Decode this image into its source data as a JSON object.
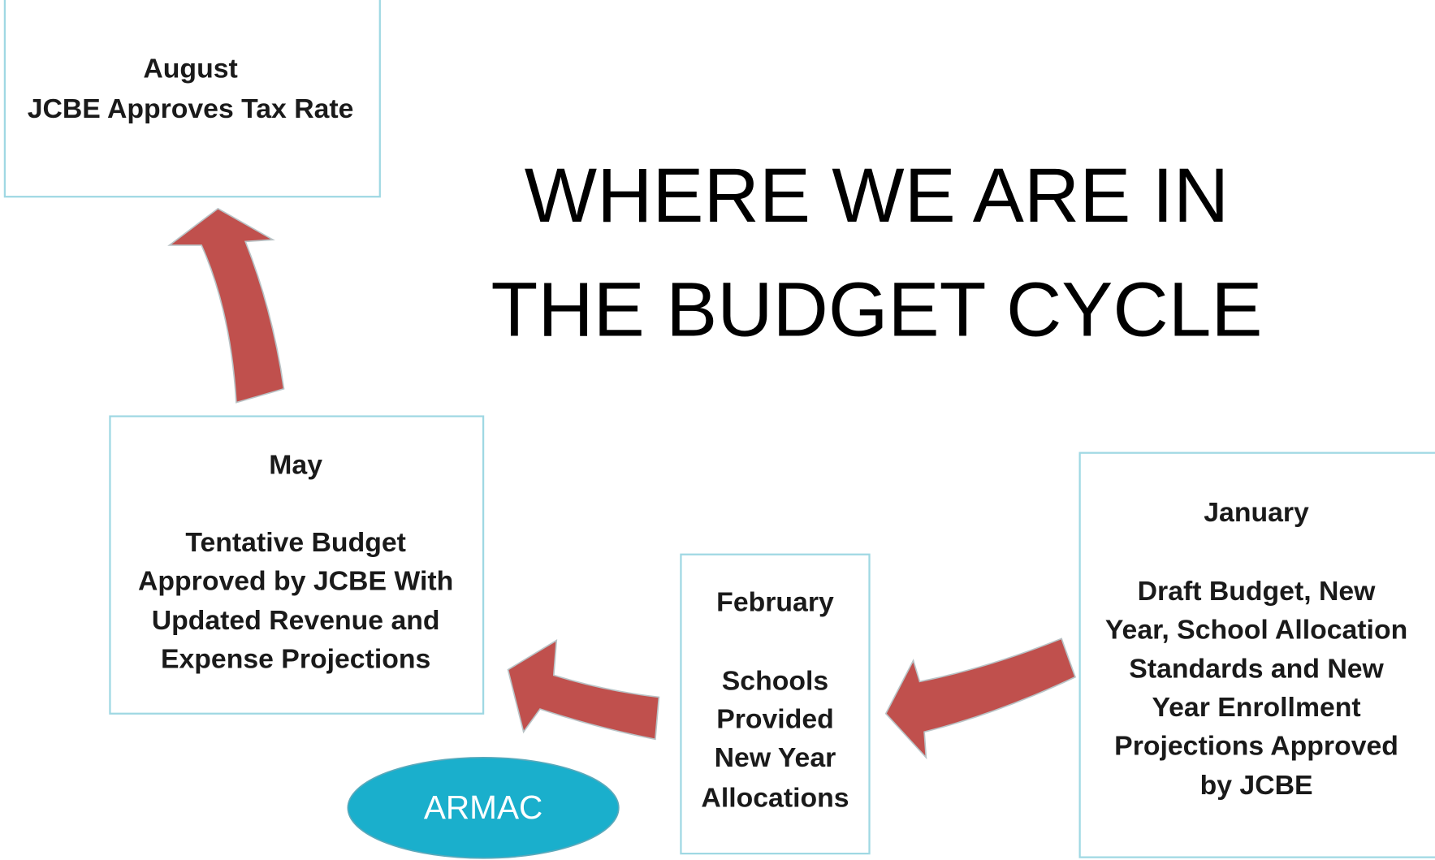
{
  "title": [
    "WHERE WE ARE IN",
    "THE BUDGET CYCLE"
  ],
  "boxes": [
    {
      "month": "August",
      "lines": [
        "JCBE Approves Tax Rate"
      ]
    },
    {
      "month": "May",
      "lines": [
        "Tentative Budget",
        "Approved by JCBE With",
        "Updated Revenue and",
        "Expense Projections"
      ]
    },
    {
      "month": "February",
      "lines": [
        "Schools",
        "Provided",
        "New Year",
        "Allocations"
      ]
    },
    {
      "month": "January",
      "lines": [
        "Draft Budget, New",
        "Year, School Allocation",
        "Standards and New",
        "Year Enrollment",
        "Projections Approved",
        "by JCBE"
      ]
    }
  ],
  "badge": "ARMAC"
}
